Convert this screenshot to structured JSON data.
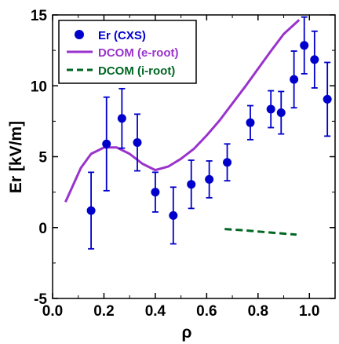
{
  "chart_data": {
    "type": "scatter",
    "xlabel": "ρ",
    "ylabel": "Er [kV/m]",
    "xlim": [
      0.0,
      1.1
    ],
    "ylim": [
      -5,
      15
    ],
    "xticks": [
      0.0,
      0.2,
      0.4,
      0.6,
      0.8,
      1.0
    ],
    "xtick_labels": [
      "0.0",
      "0.2",
      "0.4",
      "0.6",
      "0.8",
      "1.0"
    ],
    "yticks": [
      -5,
      0,
      5,
      10,
      15
    ],
    "ytick_labels": [
      "-5",
      "0",
      "5",
      "10",
      "15"
    ],
    "grid": false,
    "legend_position": "top-left",
    "series": [
      {
        "name": "Er (CXS)",
        "kind": "scatter-errorbar",
        "color": "#0000cc",
        "points": [
          {
            "x": 0.15,
            "y": 1.2,
            "err": 2.7
          },
          {
            "x": 0.21,
            "y": 5.9,
            "err": 3.3
          },
          {
            "x": 0.27,
            "y": 7.7,
            "err": 2.1
          },
          {
            "x": 0.33,
            "y": 6.0,
            "err": 2.0
          },
          {
            "x": 0.4,
            "y": 2.5,
            "err": 1.4
          },
          {
            "x": 0.47,
            "y": 0.85,
            "err": 2.0
          },
          {
            "x": 0.54,
            "y": 3.05,
            "err": 1.7
          },
          {
            "x": 0.61,
            "y": 3.4,
            "err": 1.3
          },
          {
            "x": 0.68,
            "y": 4.6,
            "err": 1.3
          },
          {
            "x": 0.77,
            "y": 7.4,
            "err": 1.2
          },
          {
            "x": 0.85,
            "y": 8.35,
            "err": 1.3
          },
          {
            "x": 0.89,
            "y": 8.1,
            "err": 1.5
          },
          {
            "x": 0.94,
            "y": 10.45,
            "err": 2.0
          },
          {
            "x": 0.98,
            "y": 12.85,
            "err": 2.0
          },
          {
            "x": 1.02,
            "y": 11.85,
            "err": 2.0
          },
          {
            "x": 1.07,
            "y": 9.05,
            "err": 2.6
          }
        ]
      },
      {
        "name": "DCOM (e-root)",
        "kind": "line",
        "color": "#9933cc",
        "dash": "solid",
        "points": [
          {
            "x": 0.05,
            "y": 1.8
          },
          {
            "x": 0.08,
            "y": 3.0
          },
          {
            "x": 0.11,
            "y": 4.2
          },
          {
            "x": 0.15,
            "y": 5.2
          },
          {
            "x": 0.2,
            "y": 5.65
          },
          {
            "x": 0.25,
            "y": 5.65
          },
          {
            "x": 0.3,
            "y": 5.2
          },
          {
            "x": 0.35,
            "y": 4.5
          },
          {
            "x": 0.4,
            "y": 4.05
          },
          {
            "x": 0.45,
            "y": 4.3
          },
          {
            "x": 0.5,
            "y": 4.85
          },
          {
            "x": 0.55,
            "y": 5.55
          },
          {
            "x": 0.6,
            "y": 6.5
          },
          {
            "x": 0.65,
            "y": 7.55
          },
          {
            "x": 0.7,
            "y": 8.75
          },
          {
            "x": 0.75,
            "y": 9.95
          },
          {
            "x": 0.8,
            "y": 11.2
          },
          {
            "x": 0.85,
            "y": 12.45
          },
          {
            "x": 0.9,
            "y": 13.65
          },
          {
            "x": 0.96,
            "y": 14.65
          }
        ]
      },
      {
        "name": "DCOM (i-root)",
        "kind": "line",
        "color": "#006622",
        "dash": "dashed",
        "points": [
          {
            "x": 0.67,
            "y": -0.1
          },
          {
            "x": 0.75,
            "y": -0.2
          },
          {
            "x": 0.85,
            "y": -0.35
          },
          {
            "x": 0.95,
            "y": -0.5
          }
        ]
      }
    ]
  }
}
